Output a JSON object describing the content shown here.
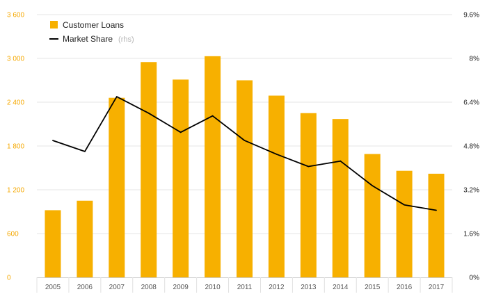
{
  "chart_data": {
    "type": "bar",
    "categories": [
      "2005",
      "2006",
      "2007",
      "2008",
      "2009",
      "2010",
      "2011",
      "2012",
      "2013",
      "2014",
      "2015",
      "2016",
      "2017"
    ],
    "series": [
      {
        "name": "Customer Loans",
        "type": "bar",
        "axis": "left",
        "color": "#f7b000",
        "values": [
          920,
          1050,
          2460,
          2950,
          2710,
          3030,
          2700,
          2490,
          2250,
          2170,
          1690,
          1460,
          1420
        ]
      },
      {
        "name": "Market Share",
        "type": "line",
        "axis": "right",
        "color": "#000000",
        "values": [
          5.0,
          4.6,
          6.6,
          6.0,
          5.3,
          5.9,
          5.0,
          4.5,
          4.05,
          4.25,
          3.35,
          2.65,
          2.45
        ]
      }
    ],
    "left_axis": {
      "range": [
        0,
        3600
      ],
      "ticks": [
        0,
        600,
        1200,
        1800,
        2400,
        3000,
        3600
      ],
      "tick_labels": [
        "0",
        "600",
        "1 200",
        "1 800",
        "2 400",
        "3 000",
        "3 600"
      ],
      "color": "#f5a800"
    },
    "right_axis": {
      "range": [
        0,
        9.6
      ],
      "ticks": [
        0,
        1.6,
        3.2,
        4.8,
        6.4,
        8,
        9.6
      ],
      "tick_labels": [
        "0%",
        "1.6%",
        "3.2%",
        "4.8%",
        "6.4%",
        "8%",
        "9.6%"
      ]
    },
    "legend": {
      "placement": "top-left",
      "entries": [
        {
          "label": "Customer Loans",
          "note": ""
        },
        {
          "label": "Market Share",
          "note": "(rhs)"
        }
      ]
    },
    "grid": true
  }
}
